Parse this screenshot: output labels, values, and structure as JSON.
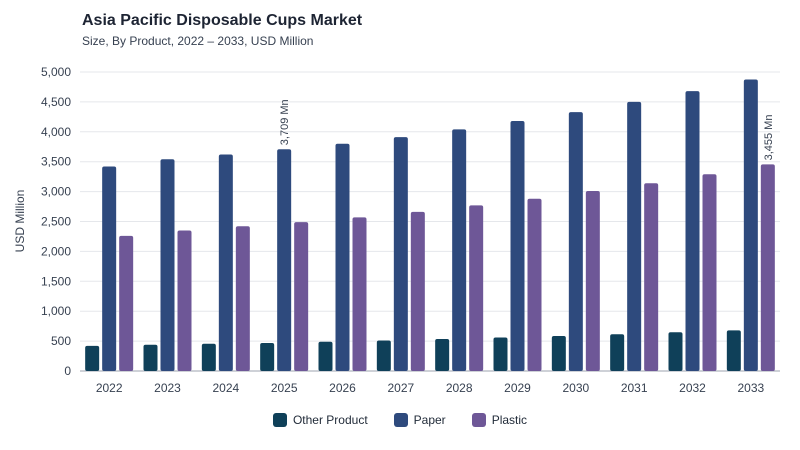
{
  "title": "Asia Pacific Disposable Cups Market",
  "subtitle": "Size, By Product, 2022 – 2033, USD Million",
  "chart_data": {
    "type": "bar",
    "title": "Asia Pacific Disposable Cups Market",
    "subtitle": "Size, By Product, 2022 – 2033, USD Million",
    "xlabel": "",
    "ylabel": "USD Million",
    "ylim": [
      0,
      5000
    ],
    "yticks": [
      0,
      500,
      1000,
      1500,
      2000,
      2500,
      3000,
      3500,
      4000,
      4500,
      5000
    ],
    "ytick_labels": [
      "0",
      "500",
      "1,000",
      "1,500",
      "2,000",
      "2,500",
      "3,000",
      "3,500",
      "4,000",
      "4,500",
      "5,000"
    ],
    "categories": [
      "2022",
      "2023",
      "2024",
      "2025",
      "2026",
      "2027",
      "2028",
      "2029",
      "2030",
      "2031",
      "2032",
      "2033"
    ],
    "series": [
      {
        "name": "Other Product",
        "color": "#0f4059",
        "values": [
          420,
          440,
          455,
          468,
          490,
          510,
          535,
          560,
          585,
          615,
          648,
          680
        ]
      },
      {
        "name": "Paper",
        "color": "#2e4a7d",
        "values": [
          3420,
          3540,
          3620,
          3709,
          3800,
          3910,
          4040,
          4180,
          4330,
          4500,
          4680,
          4875
        ]
      },
      {
        "name": "Plastic",
        "color": "#6e5797",
        "values": [
          2260,
          2350,
          2420,
          2490,
          2570,
          2660,
          2770,
          2880,
          3010,
          3140,
          3290,
          3455
        ]
      }
    ],
    "annotations": [
      {
        "category": "2025",
        "series": "Paper",
        "text": "3,709 Mn"
      },
      {
        "category": "2033",
        "series": "Plastic",
        "text": "3,455 Mn"
      }
    ],
    "grid": true,
    "legend_position": "bottom"
  }
}
